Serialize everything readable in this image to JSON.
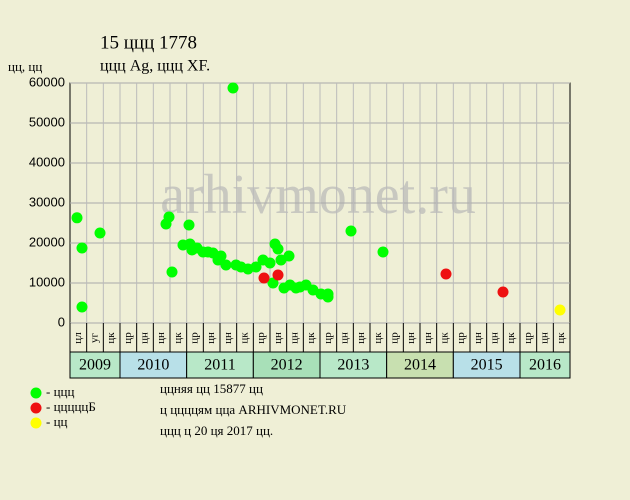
{
  "chart_data": {
    "type": "scatter",
    "title": "15 ццц 1778",
    "subtitle": "ццц Ag, ццц XF.",
    "y_label": "цц, цц",
    "watermark": "arhivmonet.ru",
    "ylim": [
      0,
      60000
    ],
    "yticks": [
      0,
      10000,
      20000,
      30000,
      40000,
      50000,
      60000
    ],
    "xlim": [
      0,
      30
    ],
    "grid": true,
    "x_groups": [
      {
        "label": "2009",
        "color": "#b8e8c8",
        "categories": [
          "цл",
          "уг",
          "цк"
        ]
      },
      {
        "label": "2010",
        "color": "#b8e0e8",
        "categories": [
          "цр",
          "цн",
          "цн",
          "цк"
        ]
      },
      {
        "label": "2011",
        "color": "#b8e8c8",
        "categories": [
          "цр",
          "цн",
          "цн",
          "цк"
        ]
      },
      {
        "label": "2012",
        "color": "#a8e0b8",
        "categories": [
          "цр",
          "цн",
          "цн",
          "цк"
        ]
      },
      {
        "label": "2013",
        "color": "#b8e8c8",
        "categories": [
          "цр",
          "цн",
          "цн",
          "цк"
        ]
      },
      {
        "label": "2014",
        "color": "#c8e0b0",
        "categories": [
          "цр",
          "цн",
          "цн",
          "цк"
        ]
      },
      {
        "label": "2015",
        "color": "#b8e0e8",
        "categories": [
          "цр",
          "цн",
          "цн",
          "цк"
        ]
      },
      {
        "label": "2016",
        "color": "#b8e8c8",
        "categories": [
          "цр",
          "цн",
          "цк"
        ]
      }
    ],
    "series": [
      {
        "name": "- ццц",
        "color": "#00ff00",
        "x": [
          0.42,
          0.72,
          0.72,
          1.8,
          5.76,
          5.94,
          6.12,
          6.78,
          7.14,
          7.2,
          7.32,
          7.62,
          7.98,
          8.28,
          8.58,
          8.88,
          9.06,
          9.36,
          9.78,
          9.96,
          10.26,
          10.68,
          11.16,
          11.58,
          12.0,
          12.3,
          12.48,
          12.18,
          12.66,
          12.84,
          13.14,
          13.2,
          13.56,
          13.8,
          14.16,
          14.58,
          15.06,
          15.48,
          15.48,
          16.86,
          18.78
        ],
        "values": [
          26300,
          18750,
          4000,
          22500,
          24750,
          26500,
          12750,
          19500,
          24500,
          19750,
          18250,
          18750,
          17750,
          17750,
          17500,
          15750,
          16750,
          14500,
          58750,
          14500,
          14000,
          13500,
          14000,
          15750,
          15000,
          19750,
          18500,
          10000,
          15750,
          8750,
          16750,
          9500,
          8750,
          9000,
          9500,
          8250,
          7250,
          7250,
          6500,
          23000,
          17750
        ]
      },
      {
        "name": "- цццццБ",
        "color": "#ee1111",
        "x": [
          11.64,
          12.48,
          22.56,
          25.98
        ],
        "values": [
          11250,
          12000,
          12250,
          7750
        ]
      },
      {
        "name": "- цц",
        "color": "#ffff00",
        "x": [
          29.4
        ],
        "values": [
          3250
        ]
      }
    ],
    "notes": [
      "ццняя цц 15877 цц",
      "ц ццццям цца ARHIVMONET.RU",
      "ццц ц 20 ця 2017 цц."
    ]
  }
}
